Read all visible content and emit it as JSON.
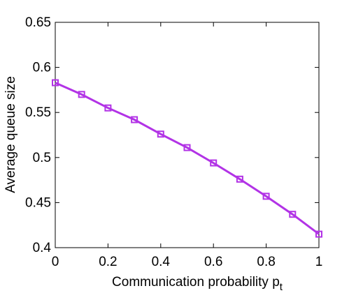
{
  "chart_data": {
    "type": "line",
    "title": "",
    "xlabel": "Communication probability p",
    "xlabel_subscript": "t",
    "ylabel": "Average queue size",
    "xlim": [
      0,
      1
    ],
    "ylim": [
      0.4,
      0.65
    ],
    "x_ticks": [
      "0",
      "0.2",
      "0.4",
      "0.6",
      "0.8",
      "1"
    ],
    "y_ticks": [
      "0.4",
      "0.45",
      "0.5",
      "0.55",
      "0.6",
      "0.65"
    ],
    "grid": false,
    "series": [
      {
        "color": "#b233e6",
        "marker": "square",
        "x": [
          0,
          0.1,
          0.2,
          0.3,
          0.4,
          0.5,
          0.6,
          0.7,
          0.8,
          0.9,
          1.0
        ],
        "y": [
          0.583,
          0.57,
          0.555,
          0.542,
          0.526,
          0.511,
          0.494,
          0.476,
          0.457,
          0.437,
          0.415
        ]
      }
    ]
  }
}
